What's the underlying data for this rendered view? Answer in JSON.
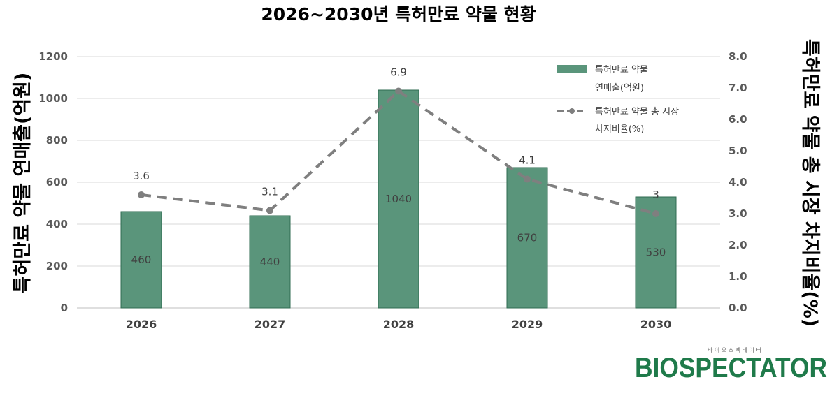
{
  "chart_data": {
    "type": "bar",
    "title": "2026~2030년 특허만료 약물 현황",
    "categories": [
      "2026",
      "2027",
      "2028",
      "2029",
      "2030"
    ],
    "ylabel": "특허만료 약물 연매출(억원)",
    "y2label": "특허만료 약물 총 시장 차지비율(%)",
    "ylim": [
      0,
      1200
    ],
    "y2lim": [
      0,
      8
    ],
    "yticks": [
      "0",
      "200",
      "400",
      "600",
      "800",
      "1000",
      "1200"
    ],
    "y2ticks": [
      "0.0",
      "1.0",
      "2.0",
      "3.0",
      "4.0",
      "5.0",
      "6.0",
      "7.0",
      "8.0"
    ],
    "grid": true,
    "legend_position": "top-right",
    "series": [
      {
        "name": "특허만료 약물 연매출(억원)",
        "legend_lines": [
          "특허만료 약물",
          "연매출(억원)"
        ],
        "type": "bar",
        "axis": "left",
        "color": "#5a957b",
        "values": [
          460,
          440,
          1040,
          670,
          530
        ],
        "labels": [
          "460",
          "440",
          "1040",
          "670",
          "530"
        ]
      },
      {
        "name": "특허만료 약물 총 시장 차지비율(%)",
        "legend_lines": [
          "특허만료 약물 총 시장",
          "차지비율(%)"
        ],
        "type": "line",
        "axis": "right",
        "style": "dashed",
        "color": "#7f7f7f",
        "values": [
          3.6,
          3.1,
          6.9,
          4.1,
          3.0
        ],
        "labels": [
          "3.6",
          "3.1",
          "6.9",
          "4.1",
          "3"
        ]
      }
    ]
  },
  "logo": {
    "text_main": "BIOSPECTATOR",
    "text_sub": "바 이 오 스 펙 테 이 터",
    "color": "#1f7a4a"
  }
}
